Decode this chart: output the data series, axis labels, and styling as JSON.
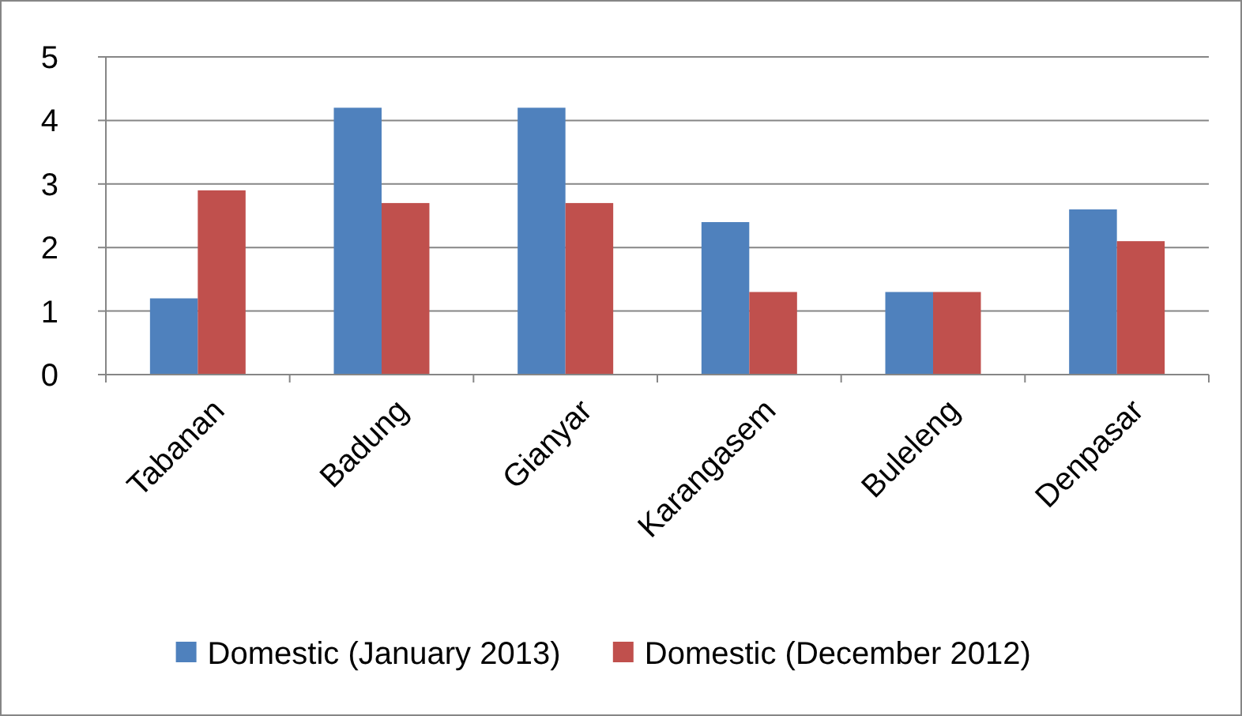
{
  "chart_data": {
    "type": "bar",
    "categories": [
      "Tabanan",
      "Badung",
      "Gianyar",
      "Karangasem",
      "Buleleng",
      "Denpasar"
    ],
    "series": [
      {
        "name": "Domestic (January 2013)",
        "color": "#4f81bd",
        "values": [
          1.2,
          4.2,
          4.2,
          2.4,
          1.3,
          2.6
        ]
      },
      {
        "name": "Domestic (December 2012)",
        "color": "#c0504d",
        "values": [
          2.9,
          2.7,
          2.7,
          1.3,
          1.3,
          2.1
        ]
      }
    ],
    "ylim": [
      0,
      5
    ],
    "yticks": [
      0,
      1,
      2,
      3,
      4,
      5
    ],
    "grid": "y",
    "legend": "bottom"
  }
}
